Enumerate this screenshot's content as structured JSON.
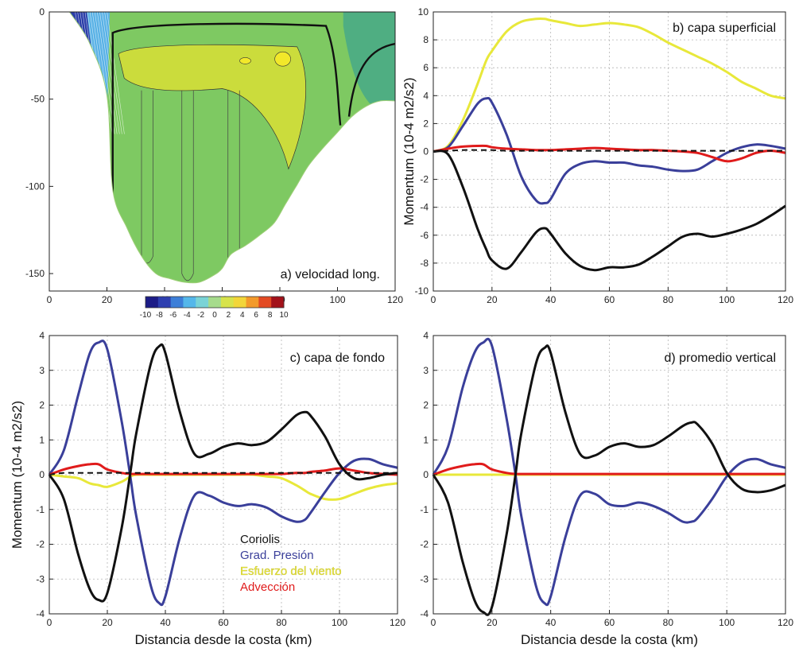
{
  "chart_data": [
    {
      "type": "heatmap",
      "panel": "a",
      "title": "a) velocidad long.",
      "xlabel": "",
      "ylabel": "",
      "xlim": [
        0,
        120
      ],
      "ylim": [
        -160,
        0
      ],
      "xticks": [
        0,
        20,
        40,
        60,
        80,
        100,
        120
      ],
      "yticks": [
        0,
        -50,
        -100,
        -150
      ],
      "colorbar": {
        "ticks": [
          -10,
          -8,
          -6,
          -4,
          -2,
          0,
          2,
          4,
          6,
          8,
          10
        ],
        "range": [
          -10,
          10
        ]
      },
      "bottom_profile": {
        "x": [
          7,
          14,
          20,
          22,
          27,
          32,
          37,
          42,
          47,
          52,
          57,
          60,
          63,
          68,
          73,
          78,
          82,
          86,
          90,
          95,
          100,
          105,
          110,
          115,
          120
        ],
        "depth": [
          0,
          -18,
          -48,
          -102,
          -124,
          -140,
          -150,
          -153,
          -155,
          -155,
          -151,
          -147,
          -139,
          -134,
          -128,
          -121,
          -110,
          -99,
          -88,
          -78,
          -69,
          -60,
          -54,
          -51,
          -51
        ]
      },
      "colors": {
        "coastal_band": "#2b3ea8",
        "slope_band": "#5ab2e6",
        "interior": "#7ec962",
        "core": "#cbdc3c",
        "max_core": "#f2e82a",
        "offshore": "#4fae82"
      }
    },
    {
      "type": "line",
      "panel": "b",
      "title": "b) capa superficial",
      "xlabel": "",
      "ylabel": "Momentum (10-4 m2/s2)",
      "xlim": [
        0,
        120
      ],
      "ylim": [
        -10,
        10
      ],
      "xticks": [
        0,
        20,
        40,
        60,
        80,
        100,
        120
      ],
      "yticks": [
        -10,
        -8,
        -6,
        -4,
        -2,
        0,
        2,
        4,
        6,
        8,
        10
      ],
      "x": [
        0,
        5,
        10,
        15,
        18,
        20,
        25,
        30,
        35,
        38,
        40,
        45,
        50,
        55,
        60,
        65,
        70,
        75,
        80,
        85,
        90,
        95,
        100,
        105,
        110,
        115,
        120
      ],
      "series": [
        {
          "name": "Coriolis",
          "color": "#111111",
          "values": [
            0,
            -0.2,
            -2.5,
            -5.5,
            -7,
            -7.8,
            -8.4,
            -7.2,
            -5.8,
            -5.5,
            -5.9,
            -7.3,
            -8.2,
            -8.5,
            -8.3,
            -8.3,
            -8.1,
            -7.5,
            -6.8,
            -6.1,
            -5.9,
            -6.1,
            -5.9,
            -5.6,
            -5.2,
            -4.6,
            -3.9
          ]
        },
        {
          "name": "Grad. Presión",
          "color": "#3a3f9a",
          "values": [
            0,
            0.3,
            1.8,
            3.4,
            3.8,
            3.5,
            1.2,
            -1.8,
            -3.5,
            -3.7,
            -3.4,
            -1.6,
            -0.9,
            -0.7,
            -0.8,
            -0.8,
            -1,
            -1.1,
            -1.3,
            -1.4,
            -1.3,
            -0.7,
            -0.1,
            0.3,
            0.5,
            0.4,
            0.2
          ]
        },
        {
          "name": "Esfuerzo del viento",
          "color": "#e8e83a",
          "values": [
            0,
            0.4,
            2.2,
            4.8,
            6.5,
            7.2,
            8.6,
            9.3,
            9.5,
            9.5,
            9.4,
            9.2,
            9,
            9.1,
            9.2,
            9.1,
            8.9,
            8.4,
            7.8,
            7.3,
            6.8,
            6.3,
            5.7,
            5,
            4.5,
            4,
            3.8
          ]
        },
        {
          "name": "Advección",
          "color": "#e01b1b",
          "values": [
            0,
            0.2,
            0.35,
            0.4,
            0.4,
            0.3,
            0.2,
            0.15,
            0.1,
            0.1,
            0.1,
            0.15,
            0.2,
            0.25,
            0.2,
            0.15,
            0.1,
            0.1,
            0.05,
            0,
            -0.1,
            -0.4,
            -0.7,
            -0.5,
            -0.1,
            0.05,
            -0.1
          ]
        },
        {
          "name": "Suma",
          "color": "#111111",
          "dashed": true,
          "values": [
            0,
            0.05,
            0.1,
            0.1,
            0.1,
            0.1,
            0.05,
            0.05,
            0.05,
            0.05,
            0.05,
            0.05,
            0.05,
            0.05,
            0.05,
            0.05,
            0.05,
            0.05,
            0.05,
            0.05,
            0.05,
            0.05,
            0.05,
            0.05,
            0.05,
            0.05,
            0.05
          ]
        }
      ]
    },
    {
      "type": "line",
      "panel": "c",
      "title": "c) capa de fondo",
      "xlabel": "Distancia desde la costa (km)",
      "ylabel": "Momentum (10-4 m2/s2)",
      "xlim": [
        0,
        120
      ],
      "ylim": [
        -4,
        4
      ],
      "xticks": [
        0,
        20,
        40,
        60,
        80,
        100,
        120
      ],
      "yticks": [
        -4,
        -3,
        -2,
        -1,
        0,
        1,
        2,
        3,
        4
      ],
      "x": [
        0,
        5,
        10,
        14,
        17,
        20,
        25,
        28,
        30,
        35,
        38,
        40,
        45,
        50,
        55,
        60,
        65,
        70,
        75,
        80,
        85,
        88,
        90,
        95,
        100,
        105,
        110,
        115,
        120
      ],
      "series": [
        {
          "name": "Coriolis",
          "color": "#111111",
          "values": [
            0,
            -0.7,
            -2.3,
            -3.3,
            -3.6,
            -3.4,
            -1.5,
            0.1,
            1.2,
            3.2,
            3.7,
            3.5,
            1.8,
            0.6,
            0.6,
            0.8,
            0.9,
            0.85,
            0.95,
            1.3,
            1.7,
            1.8,
            1.7,
            1.1,
            0.3,
            -0.1,
            -0.1,
            0,
            0.05
          ]
        },
        {
          "name": "Grad. Presión",
          "color": "#3a3f9a",
          "values": [
            0,
            0.7,
            2.3,
            3.5,
            3.8,
            3.6,
            1.5,
            -0.1,
            -1.2,
            -3.2,
            -3.7,
            -3.5,
            -1.8,
            -0.6,
            -0.6,
            -0.8,
            -0.9,
            -0.85,
            -0.95,
            -1.2,
            -1.35,
            -1.3,
            -1.1,
            -0.5,
            0.05,
            0.4,
            0.45,
            0.3,
            0.2
          ]
        },
        {
          "name": "Esfuerzo del viento",
          "color": "#e8e83a",
          "values": [
            0,
            -0.05,
            -0.1,
            -0.25,
            -0.3,
            -0.35,
            -0.2,
            -0.05,
            0,
            0,
            0,
            0,
            0,
            0,
            0,
            0,
            0,
            0,
            -0.05,
            -0.1,
            -0.3,
            -0.45,
            -0.55,
            -0.7,
            -0.7,
            -0.55,
            -0.4,
            -0.3,
            -0.25
          ]
        },
        {
          "name": "Advección",
          "color": "#e01b1b",
          "values": [
            0,
            0.15,
            0.25,
            0.3,
            0.3,
            0.15,
            0.05,
            0.02,
            0.02,
            0.02,
            0.02,
            0.02,
            0.02,
            0.02,
            0.02,
            0.02,
            0.02,
            0.02,
            0.02,
            0.02,
            0.05,
            0.05,
            0.08,
            0.12,
            0.18,
            0.12,
            0.05,
            0.02,
            0
          ]
        },
        {
          "name": "Suma",
          "color": "#111111",
          "dashed": true,
          "values": [
            0,
            0.05,
            0.05,
            0.05,
            0.05,
            0.05,
            0.05,
            0.05,
            0.05,
            0.05,
            0.05,
            0.05,
            0.05,
            0.05,
            0.05,
            0.05,
            0.05,
            0.05,
            0.05,
            0.05,
            0.05,
            0.05,
            0.05,
            0.05,
            0.05,
            0.05,
            0.05,
            0.05,
            0.05
          ]
        }
      ]
    },
    {
      "type": "line",
      "panel": "d",
      "title": "d) promedio vertical",
      "xlabel": "Distancia desde la costa (km)",
      "ylabel": "",
      "xlim": [
        0,
        120
      ],
      "ylim": [
        -4,
        4
      ],
      "xticks": [
        0,
        20,
        40,
        60,
        80,
        100,
        120
      ],
      "yticks": [
        -4,
        -3,
        -2,
        -1,
        0,
        1,
        2,
        3,
        4
      ],
      "x": [
        0,
        5,
        10,
        14,
        17,
        20,
        25,
        28,
        30,
        35,
        38,
        40,
        45,
        50,
        55,
        60,
        65,
        70,
        75,
        80,
        85,
        88,
        90,
        95,
        100,
        105,
        110,
        115,
        120
      ],
      "series": [
        {
          "name": "Coriolis",
          "color": "#111111",
          "values": [
            0,
            -0.8,
            -2.5,
            -3.6,
            -3.95,
            -3.8,
            -1.7,
            0,
            1.2,
            3.2,
            3.65,
            3.5,
            1.8,
            0.6,
            0.55,
            0.8,
            0.9,
            0.8,
            0.85,
            1.1,
            1.4,
            1.5,
            1.45,
            0.9,
            0.05,
            -0.4,
            -0.5,
            -0.45,
            -0.3
          ]
        },
        {
          "name": "Grad. Presión",
          "color": "#3a3f9a",
          "values": [
            0,
            0.8,
            2.5,
            3.5,
            3.8,
            3.7,
            1.6,
            0,
            -1.2,
            -3.2,
            -3.7,
            -3.5,
            -1.8,
            -0.6,
            -0.55,
            -0.85,
            -0.9,
            -0.8,
            -0.9,
            -1.1,
            -1.35,
            -1.35,
            -1.25,
            -0.7,
            -0.05,
            0.35,
            0.45,
            0.3,
            0.2
          ]
        },
        {
          "name": "Esfuerzo del viento",
          "color": "#e8e83a",
          "values": [
            0,
            0,
            0,
            0,
            0,
            0,
            0,
            0,
            0,
            0,
            0,
            0,
            0,
            0,
            0,
            0,
            0,
            0,
            0,
            0,
            0,
            0,
            0,
            0,
            0,
            0,
            0,
            0,
            0
          ]
        },
        {
          "name": "Advección",
          "color": "#e01b1b",
          "values": [
            0,
            0.15,
            0.25,
            0.3,
            0.3,
            0.15,
            0.05,
            0.02,
            0.02,
            0.02,
            0.02,
            0.02,
            0.02,
            0.02,
            0.02,
            0.02,
            0.02,
            0.02,
            0.02,
            0.02,
            0.02,
            0.02,
            0.02,
            0.02,
            0.02,
            0.02,
            0.02,
            0.02,
            0.02
          ]
        }
      ]
    }
  ],
  "legend": {
    "items": [
      {
        "label": "Coriolis",
        "color": "#111111"
      },
      {
        "label": "Grad. Presión",
        "color": "#3a3f9a"
      },
      {
        "label": "Esfuerzo del viento",
        "color": "#e8e83a"
      },
      {
        "label": "Advección",
        "color": "#e01b1b"
      }
    ]
  }
}
